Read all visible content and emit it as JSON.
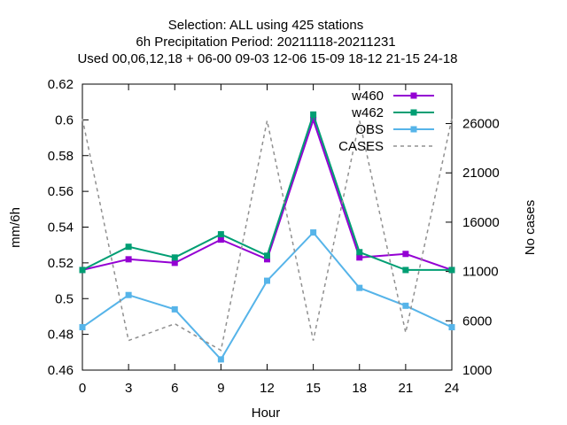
{
  "chart_data": {
    "type": "line",
    "title_lines": [
      "Selection: ALL using   425 stations",
      "6h Precipitation   Period: 20211118-20211231",
      "Used  00,06,12,18  + 06-00 09-03 12-06 15-09 18-12 21-15 24-18"
    ],
    "xlabel": "Hour",
    "ylabel": "mm/6h",
    "y2label": "No cases",
    "x": [
      0,
      3,
      6,
      9,
      12,
      15,
      18,
      21,
      24
    ],
    "xlim": [
      0,
      24
    ],
    "ylim": [
      0.46,
      0.62
    ],
    "y2lim": [
      1000,
      30000
    ],
    "xticks": [
      "0",
      "3",
      "6",
      "9",
      "12",
      "15",
      "18",
      "21",
      "24"
    ],
    "yticks": [
      "0.46",
      "0.48",
      "0.5",
      "0.52",
      "0.54",
      "0.56",
      "0.58",
      "0.6",
      "0.62"
    ],
    "y2ticks": [
      "1000",
      "6000",
      "11000",
      "16000",
      "21000",
      "26000"
    ],
    "grid": false,
    "legend_position": "top-right",
    "series": [
      {
        "name": "w460",
        "axis": "y",
        "color": "#9400d3",
        "style": "solid",
        "marker": "square",
        "values": [
          0.516,
          0.522,
          0.52,
          0.533,
          0.522,
          0.6,
          0.523,
          0.525,
          0.516
        ]
      },
      {
        "name": "w462",
        "axis": "y",
        "color": "#009e73",
        "style": "solid",
        "marker": "square",
        "values": [
          0.516,
          0.529,
          0.523,
          0.536,
          0.524,
          0.603,
          0.526,
          0.516,
          0.516
        ]
      },
      {
        "name": "OBS",
        "axis": "y",
        "color": "#56b4e9",
        "style": "solid",
        "marker": "square",
        "values": [
          0.484,
          0.502,
          0.494,
          0.466,
          0.51,
          0.537,
          0.506,
          0.496,
          0.484
        ]
      },
      {
        "name": "CASES",
        "axis": "y2",
        "color": "#909090",
        "style": "dashed",
        "marker": "none",
        "values": [
          26500,
          4000,
          5700,
          3000,
          26300,
          4000,
          26300,
          4800,
          26500
        ]
      }
    ]
  }
}
